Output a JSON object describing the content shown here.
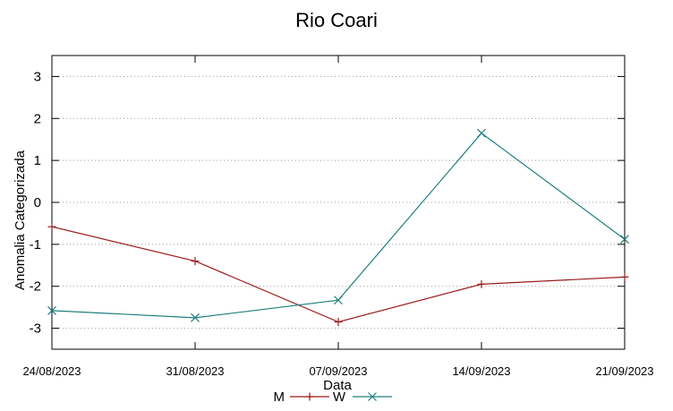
{
  "chart_data": {
    "type": "line",
    "title": "Rio Coari",
    "xlabel": "Data",
    "ylabel": "Anomalia Categorizada",
    "categories": [
      "24/08/2023",
      "31/08/2023",
      "07/09/2023",
      "14/09/2023",
      "21/09/2023"
    ],
    "yticks": [
      "3",
      "2",
      "1",
      "0",
      "-1",
      "-2",
      "-3"
    ],
    "ylim": [
      -3.5,
      3.5
    ],
    "grid": true,
    "legend_position": "bottom",
    "series": [
      {
        "name": "M",
        "color": "#9b1b1b",
        "marker": "plus",
        "values": [
          -0.58,
          -1.4,
          -2.85,
          -1.95,
          -1.78
        ]
      },
      {
        "name": "W",
        "color": "#1f7f7f",
        "marker": "cross",
        "values": [
          -2.58,
          -2.75,
          -2.33,
          1.65,
          -0.88
        ]
      }
    ]
  }
}
